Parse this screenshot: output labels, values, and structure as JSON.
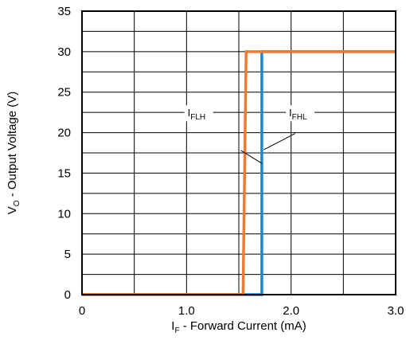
{
  "chart_data": {
    "type": "line",
    "title": "",
    "xlabel": {
      "main": "I",
      "sub": "F",
      "rest": " - Forward Current (mA)"
    },
    "ylabel": {
      "main": "V",
      "sub": "O",
      "rest": " - Output Voltage (V)"
    },
    "xlim": [
      0,
      3.0
    ],
    "ylim": [
      0,
      35
    ],
    "x_ticks": [
      0,
      0.5,
      1.0,
      1.5,
      2.0,
      2.5,
      3.0
    ],
    "x_tick_labels": [
      "0",
      "",
      "1.0",
      "",
      "2.0",
      "",
      "3.0"
    ],
    "y_ticks": [
      0,
      2.5,
      5,
      7.5,
      10,
      12.5,
      15,
      17.5,
      20,
      22.5,
      25,
      27.5,
      30,
      32.5,
      35
    ],
    "y_tick_labels": [
      "0",
      "",
      "5",
      "",
      "10",
      "",
      "15",
      "",
      "20",
      "",
      "25",
      "",
      "30",
      "",
      "35"
    ],
    "grid": true,
    "series": [
      {
        "name": "I_FHL",
        "color": "#1f87c8",
        "x": [
          0,
          1.72,
          1.72,
          3.0
        ],
        "y": [
          0,
          0,
          30,
          30
        ]
      },
      {
        "name": "I_FLH",
        "color": "#f07a30",
        "x": [
          0,
          1.54,
          1.57,
          3.0
        ],
        "y": [
          0,
          0,
          30,
          30
        ]
      }
    ],
    "annotations": [
      {
        "series": "I_FLH",
        "main": "I",
        "sub": "FLH",
        "text_at": [
          1.01,
          22
        ],
        "leader_from": [
          1.52,
          17.8
        ],
        "leader_to": [
          1.72,
          16.2
        ]
      },
      {
        "series": "I_FHL",
        "main": "I",
        "sub": "FHL",
        "text_at": [
          1.98,
          22
        ],
        "leader_from": [
          2.04,
          19.9
        ],
        "leader_to": [
          1.74,
          17.9
        ]
      }
    ]
  }
}
